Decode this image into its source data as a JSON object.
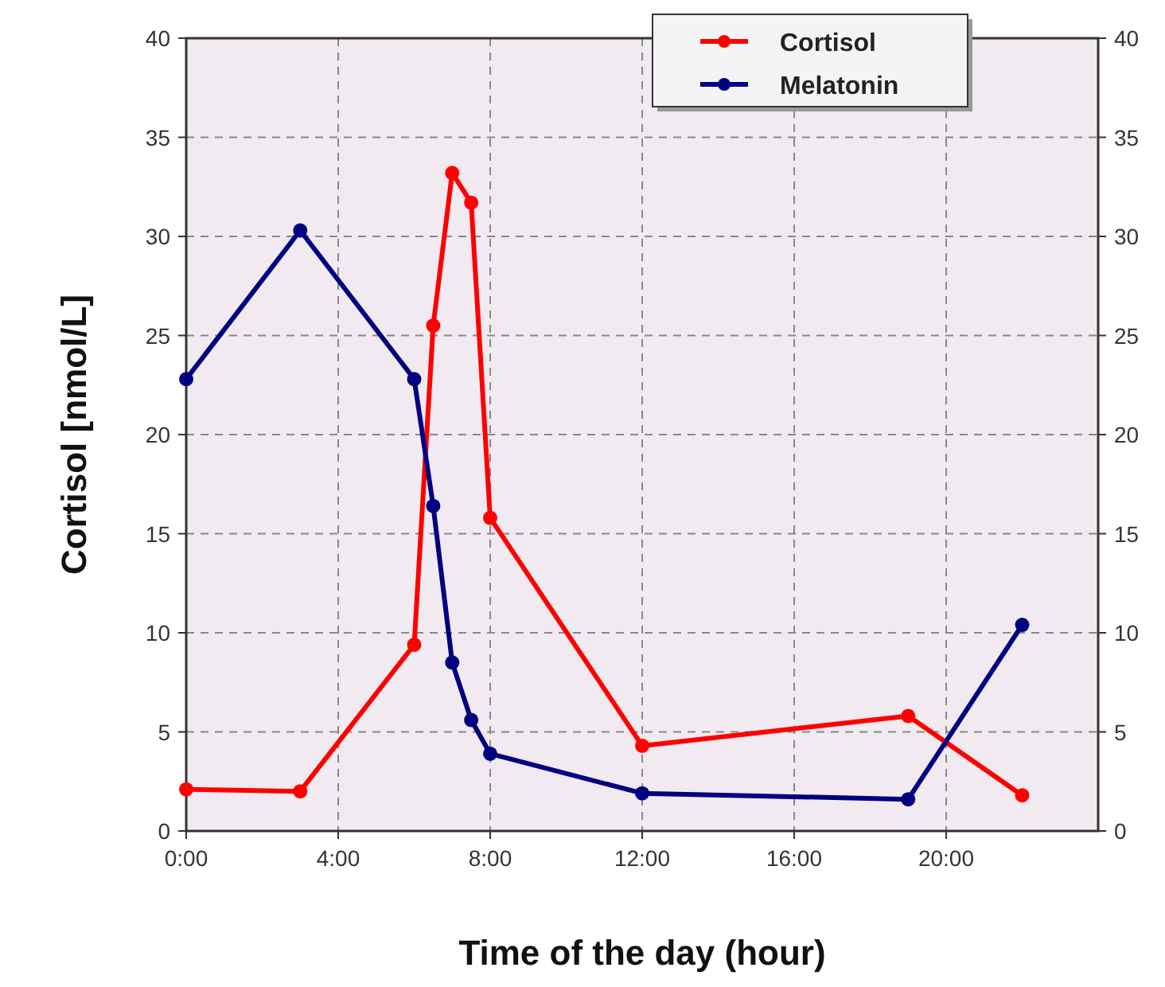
{
  "chart_data": {
    "type": "line",
    "xlabel": "Time of the day (hour)",
    "ylabel": "Cortisol [nmol/L]",
    "x": [
      0,
      3,
      6,
      6.5,
      7,
      7.5,
      8,
      12,
      19,
      22
    ],
    "series": [
      {
        "name": "Cortisol",
        "color": "#ff0000",
        "values": [
          2.1,
          2.0,
          9.4,
          25.5,
          33.2,
          31.7,
          15.8,
          4.3,
          5.8,
          1.8
        ]
      },
      {
        "name": "Melatonin",
        "color": "#000080",
        "values": [
          22.8,
          30.3,
          22.8,
          16.4,
          8.5,
          5.6,
          3.9,
          1.9,
          1.6,
          10.4
        ]
      }
    ],
    "xlim": [
      0,
      24
    ],
    "xticks": [
      {
        "value": 0,
        "label": "0:00"
      },
      {
        "value": 4,
        "label": "4:00"
      },
      {
        "value": 8,
        "label": "8:00"
      },
      {
        "value": 12,
        "label": "12:00"
      },
      {
        "value": 16,
        "label": "16:00"
      },
      {
        "value": 20,
        "label": "20:00"
      }
    ],
    "ylim": [
      0,
      40
    ],
    "yticks": [
      0,
      5,
      10,
      15,
      20,
      25,
      30,
      35,
      40
    ],
    "y2lim": [
      0,
      40
    ],
    "y2ticks": [
      0,
      5,
      10,
      15,
      20,
      25,
      30,
      35,
      40
    ],
    "grid": true,
    "legend": "top right",
    "marker": "circle",
    "line_style": "solid"
  }
}
